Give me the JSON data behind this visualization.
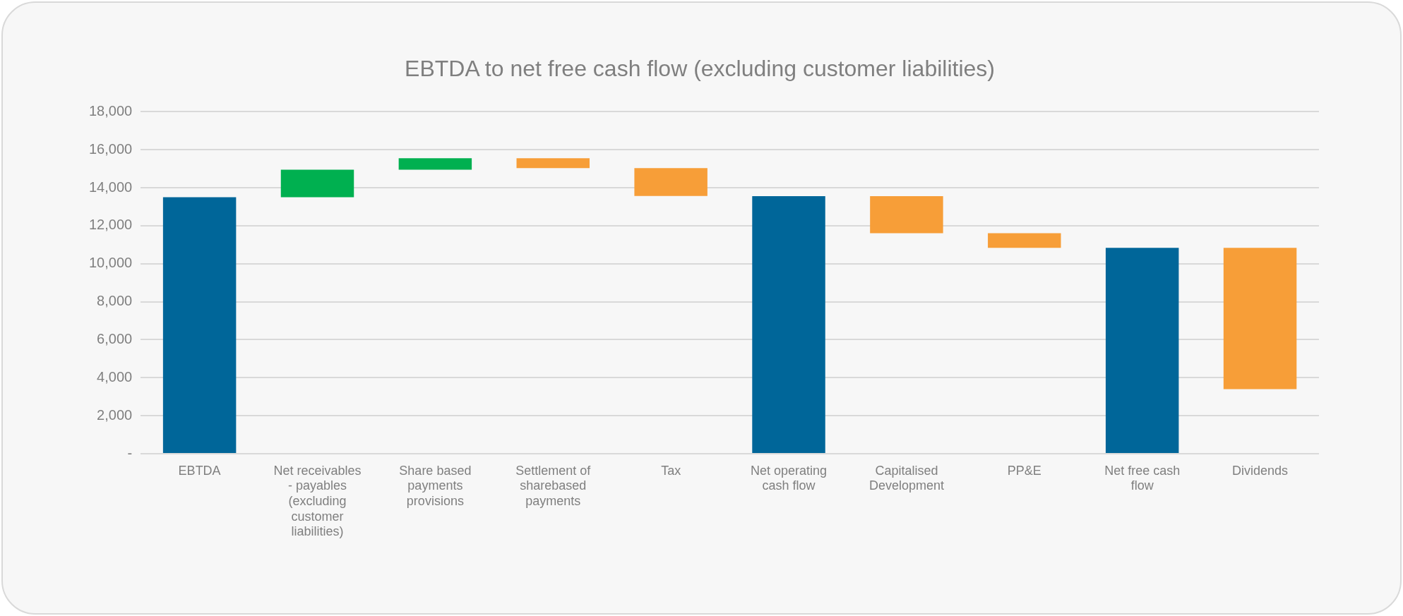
{
  "chart_data": {
    "type": "bar",
    "title": "EBTDA to net free cash flow (excluding customer liabilities)",
    "categories": [
      "EBTDA",
      "Net receivables - payables (excluding customer liabilities)",
      "Share based payments provisions",
      "Settlement of sharebased payments",
      "Tax",
      "Net operating cash flow",
      "Capitalised Development",
      "PP&E",
      "Net free cash flow",
      "Dividends"
    ],
    "base": [
      0,
      13500,
      14950,
      15550,
      15030,
      0,
      13560,
      11610,
      0,
      10835
    ],
    "values": [
      13500,
      1450,
      600,
      -520,
      -1460,
      13560,
      -1950,
      -775,
      10835,
      -7435
    ],
    "colors": [
      "#006699",
      "#00b050",
      "#00b050",
      "#f79e38",
      "#f79e38",
      "#006699",
      "#f79e38",
      "#f79e38",
      "#006699",
      "#f79e38"
    ],
    "ylim": [
      0,
      18000
    ],
    "yticks": [
      {
        "value": 0,
        "label": "-"
      },
      {
        "value": 2000,
        "label": "2,000"
      },
      {
        "value": 4000,
        "label": "4,000"
      },
      {
        "value": 6000,
        "label": "6,000"
      },
      {
        "value": 8000,
        "label": "8,000"
      },
      {
        "value": 10000,
        "label": "10,000"
      },
      {
        "value": 12000,
        "label": "12,000"
      },
      {
        "value": 14000,
        "label": "14,000"
      },
      {
        "value": 16000,
        "label": "16,000"
      },
      {
        "value": 18000,
        "label": "18,000"
      }
    ],
    "grid": "y",
    "legend": false
  }
}
